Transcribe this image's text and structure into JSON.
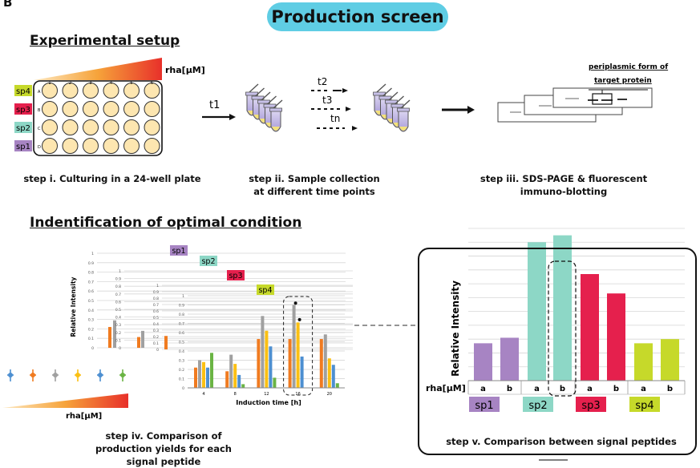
{
  "panel_label": "B",
  "banner_title": "Production screen",
  "section_setup": "Experimental setup",
  "section_optimal": "Indentification of optimal condition",
  "rha_label": "rha[μM]",
  "plate_species": [
    "sp4",
    "sp3",
    "sp2",
    "sp1"
  ],
  "plate_columns": [
    "1",
    "2",
    "3",
    "4",
    "5",
    "6"
  ],
  "plate_rows": [
    "A",
    "B",
    "C",
    "D"
  ],
  "t1": "t1",
  "time_labels": [
    "t2",
    "t3",
    "tn"
  ],
  "gel_caption": "periplasmic form of target protein",
  "steps": {
    "i": "step i. Culturing in a 24-well plate",
    "ii": "step ii. Sample collection at different time points",
    "iii": "step iii. SDS-PAGE & fluorescent immuno-blotting",
    "iv": "step iv. Comparison of production yields for each signal peptide",
    "v": "step v. Comparison between signal peptides"
  },
  "colors": {
    "banner": "#5fcde4",
    "sp1": "#a784c3",
    "sp2": "#8dd7c6",
    "sp3": "#e5204d",
    "sp4": "#c6d92a",
    "orange": "#f07b20",
    "gray": "#a0a0a0",
    "yellow": "#fbc013",
    "blue": "#4d8fd1",
    "green": "#6ab444"
  },
  "chart_data": [
    {
      "type": "bar",
      "title": "sp4",
      "xlabel": "Induction time [h]",
      "ylabel": "Relative intensity",
      "categories": [
        "4",
        "8",
        "12",
        "16",
        "20"
      ],
      "ylim": [
        0,
        1
      ],
      "yticks": [
        "0",
        "0.1",
        "0.2",
        "0.3",
        "0.4",
        "0.5",
        "0.6",
        "0.7",
        "0.8",
        "0.9",
        "1"
      ],
      "series": [
        {
          "values": [
            0.22,
            0.18,
            0.53,
            0.53,
            0.53
          ]
        },
        {
          "values": [
            0.3,
            0.36,
            0.78,
            0.9,
            0.58
          ]
        },
        {
          "values": [
            0.28,
            0.26,
            0.62,
            0.71,
            0.32
          ]
        },
        {
          "values": [
            0.22,
            0.14,
            0.45,
            0.34,
            0.25
          ]
        },
        {
          "values": [
            0.38,
            0.04,
            0.11,
            0.0,
            0.05
          ]
        }
      ],
      "back_panels": [
        "sp1",
        "sp2",
        "sp3"
      ]
    },
    {
      "type": "bar",
      "ylabel": "Relative Intensity",
      "xlabel": "rha[μM]",
      "categories": [
        "a",
        "b",
        "a",
        "b",
        "a",
        "b",
        "a",
        "b"
      ],
      "groups": [
        "sp1",
        "sp2",
        "sp3",
        "sp4"
      ],
      "values": [
        0.27,
        0.31,
        1.0,
        1.05,
        0.77,
        0.63,
        0.27,
        0.3
      ],
      "ylim": [
        0,
        1.1
      ],
      "highlight": "sp2 b"
    }
  ]
}
